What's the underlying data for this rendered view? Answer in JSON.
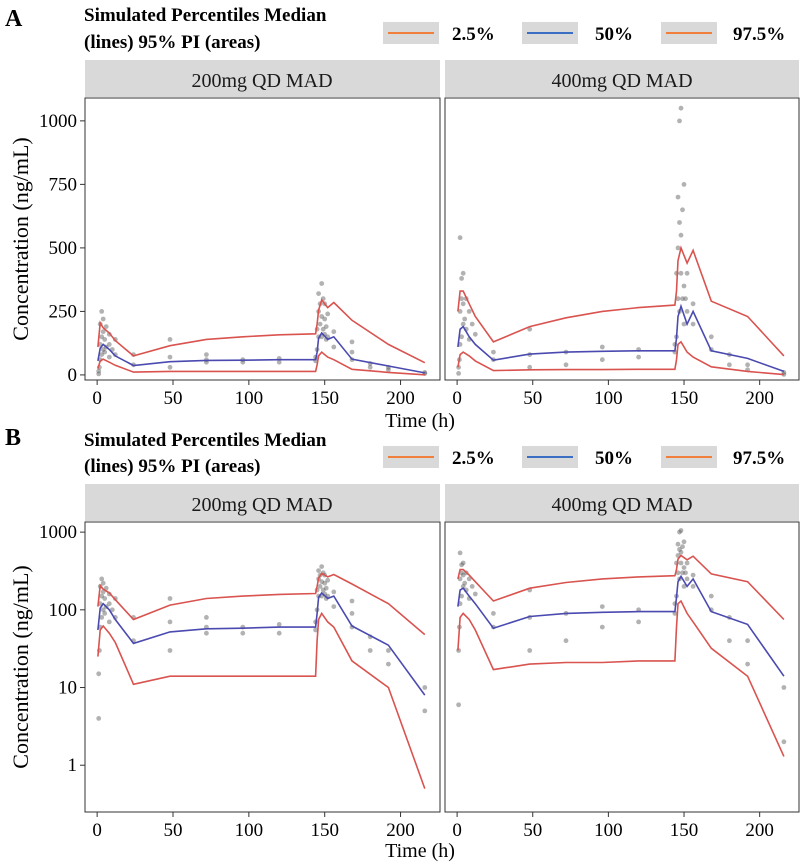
{
  "figure": {
    "panels": [
      {
        "label": "A",
        "legend": {
          "title_line1": "Simulated Percentiles Median",
          "title_line2": "(lines) 95% PI (areas)",
          "items": [
            {
              "label": "2.5%",
              "color": "#f07f3c"
            },
            {
              "label": "50%",
              "color": "#3b6fc4"
            },
            {
              "label": "97.5%",
              "color": "#f07f3c"
            }
          ]
        },
        "ylabel": "Concentration (ng/mL)",
        "xlabel": "Time (h)"
      },
      {
        "label": "B",
        "legend": {
          "title_line1": "Simulated Percentiles Median",
          "title_line2": "(lines) 95% PI (areas)",
          "items": [
            {
              "label": "2.5%",
              "color": "#f07f3c"
            },
            {
              "label": "50%",
              "color": "#3b6fc4"
            },
            {
              "label": "97.5%",
              "color": "#f07f3c"
            }
          ]
        },
        "ylabel": "Concentration (ng/mL)",
        "xlabel": "Time (h)"
      }
    ]
  },
  "chart_data": [
    {
      "panel": "A",
      "type": "line",
      "yscale": "linear",
      "ylim": [
        -20,
        1090
      ],
      "xlim": [
        -8,
        226
      ],
      "yticks": [
        0,
        250,
        500,
        750,
        1000
      ],
      "ytick_labels": [
        "0",
        "250",
        "500",
        "750",
        "1000"
      ],
      "xticks": [
        0,
        50,
        100,
        150,
        200
      ],
      "xtick_labels": [
        "0",
        "50",
        "100",
        "150",
        "200"
      ],
      "xlabel": "Time (h)",
      "ylabel": "Concentration (ng/mL)",
      "facets": [
        {
          "title": "200mg QD MAD",
          "series": [
            {
              "name": "97.5%",
              "color": "#d9534f",
              "x": [
                0.5,
                2,
                4,
                8,
                12,
                24,
                48,
                72,
                96,
                120,
                144,
                145,
                146,
                148,
                152,
                156,
                168,
                192,
                216
              ],
              "y": [
                110,
                205,
                185,
                165,
                135,
                75,
                115,
                140,
                150,
                158,
                162,
                200,
                255,
                295,
                265,
                285,
                215,
                120,
                48
              ]
            },
            {
              "name": "50%",
              "color": "#4a4ab0",
              "x": [
                0.5,
                2,
                4,
                8,
                12,
                24,
                48,
                72,
                96,
                120,
                144,
                145,
                146,
                148,
                152,
                156,
                168,
                192,
                216
              ],
              "y": [
                55,
                105,
                120,
                100,
                75,
                37,
                52,
                57,
                58,
                60,
                60,
                90,
                145,
                165,
                140,
                150,
                62,
                35,
                8
              ]
            },
            {
              "name": "2.5%",
              "color": "#d9534f",
              "x": [
                0.5,
                2,
                4,
                8,
                12,
                24,
                48,
                72,
                96,
                120,
                144,
                145,
                146,
                148,
                152,
                156,
                168,
                192,
                216
              ],
              "y": [
                25,
                55,
                62,
                50,
                38,
                11,
                14,
                14,
                14,
                14,
                14,
                40,
                75,
                90,
                70,
                60,
                22,
                10,
                0.5
              ]
            }
          ],
          "observations": {
            "x": [
              1,
              1,
              1.5,
              2,
              2,
              2,
              3,
              3,
              3,
              4,
              4,
              4,
              5,
              5,
              6,
              6,
              8,
              8,
              8,
              10,
              12,
              12,
              24,
              24,
              48,
              48,
              48,
              72,
              72,
              72,
              96,
              96,
              120,
              120,
              144,
              144,
              145,
              145,
              146,
              146,
              146,
              147,
              147,
              148,
              148,
              148,
              149,
              149,
              150,
              150,
              150,
              151,
              151,
              152,
              152,
              156,
              156,
              168,
              168,
              168,
              180,
              180,
              192,
              192,
              216,
              216
            ],
            "y": [
              4,
              15,
              30,
              60,
              120,
              200,
              80,
              150,
              250,
              100,
              170,
              220,
              90,
              140,
              110,
              190,
              70,
              120,
              160,
              100,
              80,
              140,
              40,
              80,
              30,
              70,
              140,
              50,
              60,
              80,
              50,
              60,
              50,
              65,
              55,
              70,
              100,
              180,
              150,
              250,
              320,
              200,
              280,
              150,
              230,
              360,
              180,
              300,
              160,
              220,
              280,
              140,
              190,
              150,
              240,
              110,
              170,
              60,
              90,
              130,
              30,
              45,
              20,
              30,
              5,
              10
            ]
          }
        },
        {
          "title": "400mg QD MAD",
          "series": [
            {
              "name": "97.5%",
              "color": "#d9534f",
              "x": [
                0.5,
                2,
                4,
                8,
                12,
                24,
                48,
                72,
                96,
                120,
                144,
                145,
                146,
                148,
                152,
                156,
                168,
                192,
                216
              ],
              "y": [
                250,
                330,
                330,
                280,
                230,
                130,
                190,
                225,
                250,
                265,
                275,
                330,
                450,
                500,
                440,
                490,
                290,
                230,
                75
              ]
            },
            {
              "name": "50%",
              "color": "#4a4ab0",
              "x": [
                0.5,
                2,
                4,
                8,
                12,
                24,
                48,
                72,
                96,
                120,
                144,
                145,
                146,
                148,
                152,
                156,
                168,
                192,
                216
              ],
              "y": [
                110,
                180,
                190,
                150,
                120,
                58,
                82,
                90,
                93,
                95,
                95,
                145,
                230,
                270,
                200,
                250,
                95,
                65,
                14
              ]
            },
            {
              "name": "2.5%",
              "color": "#d9534f",
              "x": [
                0.5,
                2,
                4,
                8,
                12,
                24,
                48,
                72,
                96,
                120,
                144,
                145,
                146,
                148,
                152,
                156,
                168,
                192,
                216
              ],
              "y": [
                30,
                80,
                90,
                75,
                55,
                17,
                20,
                21,
                21,
                22,
                22,
                60,
                120,
                130,
                90,
                70,
                32,
                14,
                1.3
              ]
            }
          ],
          "observations": {
            "x": [
              1,
              1,
              1.5,
              2,
              2,
              2,
              3,
              3,
              3,
              4,
              4,
              4,
              5,
              6,
              6,
              8,
              8,
              10,
              12,
              24,
              24,
              48,
              48,
              48,
              72,
              72,
              96,
              96,
              120,
              120,
              144,
              144,
              145,
              145,
              146,
              146,
              146,
              147,
              147,
              147,
              148,
              148,
              148,
              149,
              149,
              150,
              150,
              150,
              151,
              152,
              152,
              156,
              156,
              168,
              168,
              180,
              180,
              192,
              192,
              216,
              216
            ],
            "y": [
              6,
              30,
              60,
              120,
              250,
              540,
              150,
              300,
              380,
              200,
              280,
              400,
              220,
              180,
              300,
              140,
              250,
              200,
              160,
              60,
              90,
              30,
              80,
              180,
              40,
              90,
              60,
              110,
              70,
              100,
              90,
              120,
              150,
              400,
              300,
              500,
              700,
              250,
              600,
              1000,
              400,
              550,
              1050,
              300,
              650,
              200,
              350,
              750,
              300,
              250,
              400,
              200,
              280,
              100,
              150,
              40,
              80,
              20,
              40,
              2,
              10
            ]
          }
        }
      ]
    },
    {
      "panel": "B",
      "type": "line",
      "yscale": "log",
      "ylim": [
        0.25,
        1350
      ],
      "xlim": [
        -8,
        226
      ],
      "yticks": [
        1,
        10,
        100,
        1000
      ],
      "ytick_labels": [
        "1",
        "10",
        "100",
        "1000"
      ],
      "xticks": [
        0,
        50,
        100,
        150,
        200
      ],
      "xtick_labels": [
        "0",
        "50",
        "100",
        "150",
        "200"
      ],
      "xlabel": "Time (h)",
      "ylabel": "Concentration (ng/mL)",
      "facets_same_as_panel": "A"
    }
  ]
}
